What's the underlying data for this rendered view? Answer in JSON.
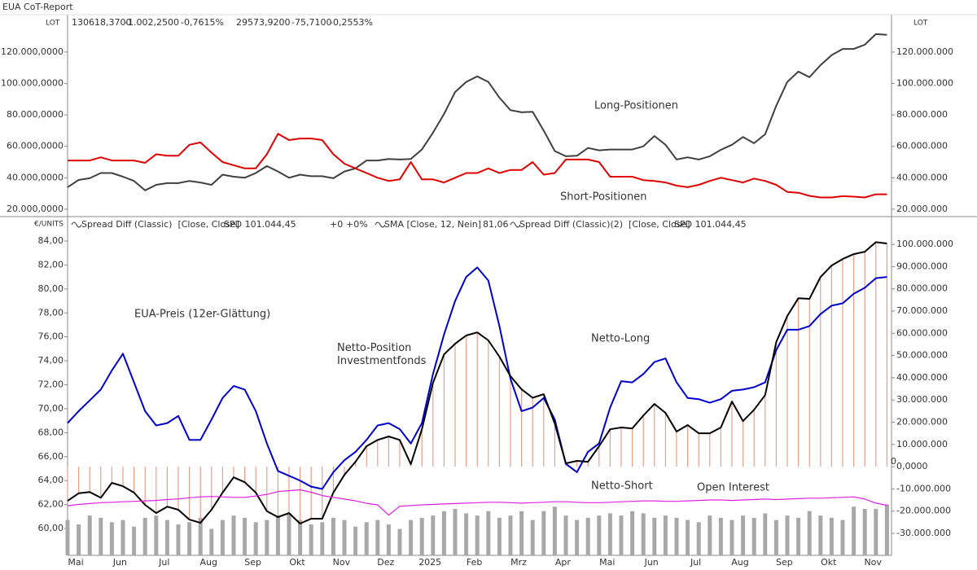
{
  "chart_data": [
    {
      "type": "line",
      "title": "EUA CoT-Report",
      "ylabel": "LOT",
      "stats": [
        {
          "text": "130618,3700",
          "color": "#333333"
        },
        {
          "text": "-1.002,2500",
          "color": "#cc0000"
        },
        {
          "text": "-0,7615%",
          "color": "#cc0000"
        },
        {
          "text": "29573,9200",
          "color": "#cc0000"
        },
        {
          "text": "-75,7100",
          "color": "#cc0000"
        },
        {
          "text": "-0,2553%",
          "color": "#cc0000"
        }
      ],
      "ylim": [
        15300,
        143800
      ],
      "yticks": [
        {
          "value": 20000,
          "label": "20.000,0000"
        },
        {
          "value": 40000,
          "label": "40.000,0000"
        },
        {
          "value": 60000,
          "label": "60.000,0000"
        },
        {
          "value": 80000,
          "label": "80.000,0000"
        },
        {
          "value": 100000,
          "label": "100.000,0000"
        },
        {
          "value": 120000,
          "label": "120.000,0000"
        }
      ],
      "y2lim": [
        15300000,
        143800000
      ],
      "y2ticks": [
        {
          "value": 20000000,
          "label": "20.000.000"
        },
        {
          "value": 40000000,
          "label": "40.000.000"
        },
        {
          "value": 60000000,
          "label": "60.000.000"
        },
        {
          "value": 80000000,
          "label": "80.000.000"
        },
        {
          "value": 100000000,
          "label": "100.000.000"
        },
        {
          "value": 120000000,
          "label": "120.000.000"
        }
      ],
      "series": [
        {
          "name": "Long-Positionen",
          "color": "#404040",
          "label_color": "#333333",
          "values": [
            34000,
            38600,
            39700,
            43000,
            43000,
            40700,
            38000,
            32000,
            35500,
            36600,
            36600,
            38000,
            37000,
            35500,
            42000,
            40700,
            40000,
            43000,
            47500,
            44000,
            40000,
            42000,
            41000,
            41000,
            39700,
            44000,
            46000,
            51000,
            51000,
            52000,
            51600,
            52000,
            58000,
            68700,
            80600,
            94600,
            101000,
            104500,
            101000,
            91000,
            83000,
            81700,
            82000,
            70000,
            57000,
            53700,
            54000,
            59000,
            57500,
            58000,
            58000,
            58000,
            60000,
            66600,
            61000,
            51600,
            53000,
            51600,
            53700,
            57800,
            61000,
            66000,
            62000,
            67700,
            85800,
            101000,
            107600,
            104000,
            111700,
            118000,
            122000,
            122000,
            124700,
            131400,
            131000
          ]
        },
        {
          "name": "Short-Positionen",
          "color": "#e00000",
          "label_color": "#e00000",
          "values": [
            51000,
            51000,
            51000,
            53000,
            51000,
            51000,
            51000,
            49500,
            55000,
            54000,
            54000,
            61000,
            62500,
            56000,
            50000,
            48000,
            46000,
            46000,
            55000,
            68000,
            64000,
            65000,
            65000,
            64000,
            55000,
            49000,
            46000,
            43000,
            40000,
            38000,
            39000,
            50000,
            39000,
            39000,
            37000,
            40000,
            43000,
            43000,
            46000,
            43000,
            45000,
            45000,
            50000,
            42000,
            43000,
            51600,
            51600,
            51600,
            50000,
            40700,
            40700,
            40700,
            38500,
            38000,
            37000,
            35000,
            34000,
            35500,
            38000,
            40000,
            38500,
            37000,
            39500,
            38000,
            35500,
            31000,
            30500,
            28500,
            27500,
            27500,
            28300,
            28000,
            27500,
            29500,
            29500
          ]
        }
      ]
    },
    {
      "type": "line",
      "ylabel": "€/UNITS",
      "indicators": [
        {
          "text": "Spread Diff (Classic)  [Close, Close]",
          "color": "#444444"
        },
        {
          "text": "SPD 101.044,45",
          "color": "#e07050"
        },
        {
          "text": "+0",
          "color": "#00a000"
        },
        {
          "text": "+0%",
          "color": "#00a000"
        },
        {
          "text": "SMA [Close, 12, Nein]",
          "color": "#444444"
        },
        {
          "text": "81,06",
          "color": "#0000cc"
        },
        {
          "text": "Spread Diff (Classic)(2)  [Close, Close]",
          "color": "#444444"
        },
        {
          "text": "SPD 101.044,45",
          "color": "#000000"
        }
      ],
      "categories": [
        "Mai",
        null,
        null,
        null,
        "Jun",
        null,
        null,
        null,
        "Jul",
        null,
        null,
        null,
        "Aug",
        null,
        null,
        null,
        "Sep",
        null,
        null,
        null,
        "Okt",
        null,
        null,
        null,
        "Nov",
        null,
        null,
        null,
        "Dez",
        null,
        null,
        null,
        "2025",
        null,
        null,
        null,
        "Feb",
        null,
        null,
        null,
        "Mrz",
        null,
        null,
        null,
        "Apr",
        null,
        null,
        null,
        "Mai",
        null,
        null,
        null,
        "Jun",
        null,
        null,
        null,
        "Jul",
        null,
        null,
        null,
        "Aug",
        null,
        null,
        null,
        "Sep",
        null,
        null,
        null,
        "Okt",
        null,
        null,
        null,
        "Nov",
        null,
        null
      ],
      "ylim": [
        57.76,
        86.04
      ],
      "yticks": [
        {
          "value": 60,
          "label": "60,00"
        },
        {
          "value": 62,
          "label": "62,00"
        },
        {
          "value": 64,
          "label": "64,00"
        },
        {
          "value": 66,
          "label": "66,00"
        },
        {
          "value": 68,
          "label": "68,00"
        },
        {
          "value": 70,
          "label": "70,00"
        },
        {
          "value": 72,
          "label": "72,00"
        },
        {
          "value": 74,
          "label": "74,00"
        },
        {
          "value": 76,
          "label": "76,00"
        },
        {
          "value": 78,
          "label": "78,00"
        },
        {
          "value": 80,
          "label": "80,00"
        },
        {
          "value": 82,
          "label": "82,00"
        },
        {
          "value": 84,
          "label": "84,00"
        }
      ],
      "y2lim": [
        -39900000,
        112500000
      ],
      "y2ticks": [
        {
          "value": -30000000,
          "label": "-30.000.000"
        },
        {
          "value": -20000000,
          "label": "-20.000.000"
        },
        {
          "value": -10000000,
          "label": "-10.000.000"
        },
        {
          "value": 0,
          "label": "0,0000"
        },
        {
          "value": 10000000,
          "label": "10.000.000"
        },
        {
          "value": 20000000,
          "label": "20.000.000"
        },
        {
          "value": 30000000,
          "label": "30.000.000"
        },
        {
          "value": 40000000,
          "label": "40.000.000"
        },
        {
          "value": 50000000,
          "label": "50.000.000"
        },
        {
          "value": 60000000,
          "label": "60.000.000"
        },
        {
          "value": 70000000,
          "label": "70.000.000"
        },
        {
          "value": 80000000,
          "label": "80.000.000"
        },
        {
          "value": 90000000,
          "label": "90.000.000"
        },
        {
          "value": 100000000,
          "label": "100.000.000"
        }
      ],
      "annotations": [
        "Netto-Long",
        "Netto-Short",
        "0"
      ],
      "series": [
        {
          "color": "#a8a8a8",
          "kind": "bar",
          "axis": "y2",
          "values": [
            -24000000.0,
            -26000000.0,
            -22000000.0,
            -23000000.0,
            -25000000.0,
            -24000000.0,
            -27000000.0,
            -23000000.0,
            -22000000.0,
            -24000000.0,
            -26000000.0,
            -25000000.0,
            -23000000.0,
            -28000000.0,
            -24000000.0,
            -22000000.0,
            -23000000.0,
            -25000000.0,
            -24000000.0,
            -22000000.0,
            -21000000.0,
            -24000000.0,
            -26000000.0,
            -25000000.0,
            -23000000.0,
            -24000000.0,
            -27000000.0,
            -25000000.0,
            -24000000.0,
            -26000000.0,
            -28000000.0,
            -24000000.0,
            -23000000.0,
            -22000000.0,
            -20000000.0,
            -19000000.0,
            -21000000.0,
            -22000000.0,
            -20000000.0,
            -23000000.0,
            -22000000.0,
            -20000000.0,
            -24000000.0,
            -20000000.0,
            -18000000.0,
            -22000000.0,
            -24000000.0,
            -23000000.0,
            -22000000.0,
            -21000000.0,
            -22000000.0,
            -20000000.0,
            -21000000.0,
            -23000000.0,
            -22000000.0,
            -23000000.0,
            -24000000.0,
            -25000000.0,
            -22000000.0,
            -23000000.0,
            -24000000.0,
            -22000000.0,
            -23000000.0,
            -21000000.0,
            -24000000.0,
            -22000000.0,
            -23000000.0,
            -20000000.0,
            -22000000.0,
            -23000000.0,
            -24000000.0,
            -18000000.0,
            -19000000.0,
            -19000000.0,
            -17000000.0
          ]
        },
        {
          "name": "EUA-Preis (12er-Glättung)",
          "color": "#0000cc",
          "label_color": "#0000cc",
          "values": [
            68.8,
            69.8,
            70.7,
            71.6,
            73.2,
            74.6,
            72.2,
            69.8,
            68.6,
            68.8,
            69.4,
            67.4,
            67.4,
            69.1,
            70.9,
            71.9,
            71.6,
            69.8,
            67.1,
            64.8,
            64.4,
            64.0,
            63.5,
            63.3,
            64.7,
            65.7,
            66.4,
            67.4,
            68.6,
            68.8,
            68.3,
            67.1,
            68.8,
            72.9,
            76.2,
            79.0,
            81.0,
            81.8,
            80.7,
            76.9,
            72.5,
            69.8,
            70.1,
            70.9,
            69.1,
            65.4,
            64.7,
            66.4,
            67.1,
            70.1,
            72.3,
            72.2,
            72.9,
            73.9,
            74.2,
            72.2,
            70.9,
            70.8,
            70.5,
            70.8,
            71.5,
            71.6,
            71.8,
            72.2,
            74.9,
            76.6,
            76.6,
            76.9,
            77.9,
            78.6,
            78.8,
            79.6,
            80.1,
            80.9,
            81.0
          ]
        },
        {
          "name": "Netto-Position Investmentfonds",
          "color": "#000000",
          "label_color": "#333333",
          "bar_color": "#e8a08a",
          "axis": "y2",
          "values": [
            -15400000.0,
            -12000000.0,
            -11400000.0,
            -14000000.0,
            -7300000.0,
            -8800000.0,
            -11700000.0,
            -17200000.0,
            -20900000.0,
            -18000000.0,
            -19400000.0,
            -23800000.0,
            -25300000.0,
            -19400000.0,
            -11700000.0,
            -4800000.0,
            -7000000.0,
            -11700000.0,
            -20000000.0,
            -22700000.0,
            -20900000.0,
            -25600000.0,
            -23400000.0,
            -23400000.0,
            -11700000.0,
            -3700000.0,
            2200000.0,
            9200000.0,
            12000000.0,
            13600000.0,
            12000000.0,
            1100000.0,
            16800000.0,
            37700000.0,
            50500000.0,
            55300000.0,
            59000000.0,
            60400000.0,
            56800000.0,
            49500000.0,
            40700000.0,
            34800000.0,
            31000000.0,
            32600000.0,
            19400000.0,
            1500000.0,
            2600000.0,
            2200000.0,
            9200000.0,
            16800000.0,
            17600000.0,
            17200000.0,
            23000000.0,
            28200000.0,
            24200000.0,
            15800000.0,
            18700000.0,
            15000000.0,
            15000000.0,
            17600000.0,
            29300000.0,
            20500000.0,
            25600000.0,
            32200000.0,
            56000000.0,
            67800000.0,
            75800000.0,
            75500000.0,
            85300000.0,
            90500000.0,
            93400000.0,
            95600000.0,
            96700000.0,
            101000000.0,
            100400000.0
          ]
        },
        {
          "name": "Open Interest",
          "color": "#e020e0",
          "label_color": "#e020e0",
          "axis": "y2",
          "values": [
            -17600000.0,
            -17000000.0,
            -16600000.0,
            -16200000.0,
            -16000000.0,
            -15800000.0,
            -15600000.0,
            -15400000.0,
            -15200000.0,
            -14800000.0,
            -14500000.0,
            -14000000.0,
            -13600000.0,
            -13400000.0,
            -13600000.0,
            -13800000.0,
            -13800000.0,
            -13200000.0,
            -12500000.0,
            -11200000.0,
            -10800000.0,
            -10400000.0,
            -11500000.0,
            -13000000.0,
            -13800000.0,
            -14600000.0,
            -15400000.0,
            -16500000.0,
            -17200000.0,
            -21800000.0,
            -17800000.0,
            -17500000.0,
            -17200000.0,
            -17000000.0,
            -16800000.0,
            -16600000.0,
            -16400000.0,
            -16200000.0,
            -16000000.0,
            -16000000.0,
            -16200000.0,
            -16400000.0,
            -16200000.0,
            -16000000.0,
            -15800000.0,
            -15800000.0,
            -16000000.0,
            -16200000.0,
            -16200000.0,
            -16000000.0,
            -15800000.0,
            -15600000.0,
            -15400000.0,
            -15400000.0,
            -15600000.0,
            -15600000.0,
            -15400000.0,
            -15200000.0,
            -15000000.0,
            -15000000.0,
            -15200000.0,
            -15000000.0,
            -14800000.0,
            -14600000.0,
            -14800000.0,
            -14600000.0,
            -14400000.0,
            -14200000.0,
            -14200000.0,
            -14000000.0,
            -13800000.0,
            -13600000.0,
            -14600000.0,
            -16400000.0,
            -17400000.0
          ]
        }
      ]
    }
  ]
}
